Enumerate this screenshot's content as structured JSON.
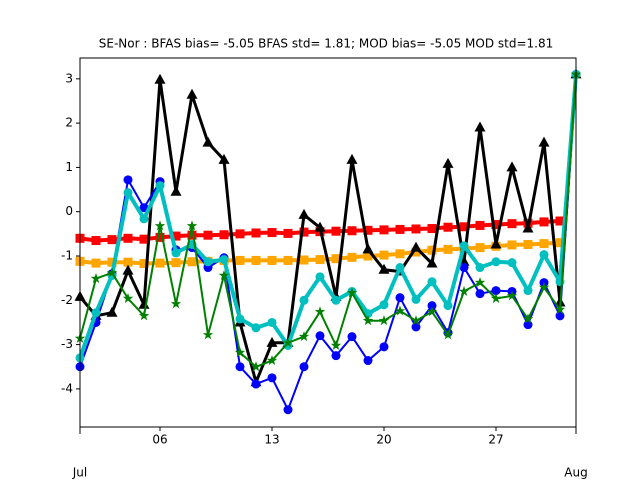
{
  "chart_data": {
    "type": "line",
    "title": "SE-Nor   : BFAS bias= -5.05 BFAS std= 1.81; MOD bias= -5.05 MOD std=1.81",
    "x": [
      1,
      2,
      3,
      4,
      5,
      6,
      7,
      8,
      9,
      10,
      11,
      12,
      13,
      14,
      15,
      16,
      17,
      18,
      19,
      20,
      21,
      22,
      23,
      24,
      25,
      26,
      27,
      28,
      29,
      30,
      31,
      32
    ],
    "xlim": [
      1,
      32
    ],
    "xticks": [
      {
        "value": 6,
        "label": "06"
      },
      {
        "value": 13,
        "label": "13"
      },
      {
        "value": 20,
        "label": "20"
      },
      {
        "value": 27,
        "label": "27"
      }
    ],
    "month_ticks": [
      {
        "value": 1,
        "label": "Jul"
      },
      {
        "value": 32,
        "label": "Aug"
      }
    ],
    "ylim": [
      -4.86,
      3.47
    ],
    "yticks": [
      -4,
      -3,
      -2,
      -1,
      0,
      1,
      2,
      3
    ],
    "grid": false,
    "series": [
      {
        "color": "#ff0000",
        "marker": "square",
        "width": 4,
        "values": [
          -0.6,
          -0.65,
          -0.63,
          -0.6,
          -0.62,
          -0.58,
          -0.55,
          -0.53,
          -0.53,
          -0.52,
          -0.5,
          -0.48,
          -0.47,
          -0.49,
          -0.46,
          -0.45,
          -0.44,
          -0.43,
          -0.42,
          -0.41,
          -0.4,
          -0.39,
          -0.38,
          -0.35,
          -0.34,
          -0.31,
          -0.29,
          -0.27,
          -0.26,
          -0.23,
          -0.21,
          null
        ]
      },
      {
        "color": "#ffa500",
        "marker": "square",
        "width": 4,
        "values": [
          -1.12,
          -1.16,
          -1.14,
          -1.14,
          -1.17,
          -1.16,
          -1.15,
          -1.13,
          -1.12,
          -1.1,
          -1.1,
          -1.1,
          -1.1,
          -1.1,
          -1.09,
          -1.08,
          -1.06,
          -1.03,
          -1.0,
          -0.98,
          -0.95,
          -0.91,
          -0.87,
          -0.85,
          -0.83,
          -0.81,
          -0.78,
          -0.75,
          -0.74,
          -0.72,
          -0.7,
          null
        ]
      },
      {
        "color": "#000000",
        "marker": "triangle",
        "width": 3,
        "values": [
          -1.92,
          -2.35,
          -2.28,
          -1.33,
          -2.1,
          2.98,
          0.45,
          2.64,
          1.56,
          1.17,
          -2.5,
          -3.85,
          -2.96,
          -2.96,
          -0.07,
          -0.36,
          -1.92,
          1.17,
          -0.85,
          -1.31,
          -1.35,
          -0.81,
          -1.17,
          1.08,
          -1.13,
          1.9,
          -0.74,
          1.0,
          -0.38,
          1.56,
          -2.05,
          3.1
        ]
      },
      {
        "color": "#0000ff",
        "marker": "circle",
        "width": 2,
        "values": [
          -3.5,
          -2.5,
          -1.4,
          0.72,
          0.09,
          0.68,
          -0.86,
          -0.81,
          -1.26,
          -1.04,
          -3.5,
          -3.89,
          -3.75,
          -4.47,
          -3.5,
          -2.8,
          -3.25,
          -2.82,
          -3.36,
          -3.05,
          -1.94,
          -2.6,
          -2.12,
          -2.73,
          -1.26,
          -1.85,
          -1.78,
          -1.8,
          -2.55,
          -1.6,
          -2.35,
          3.1
        ]
      },
      {
        "color": "#00bfbf",
        "marker": "circle",
        "width": 4,
        "values": [
          -3.3,
          -2.28,
          -1.44,
          0.43,
          -0.16,
          0.59,
          -0.93,
          -0.74,
          -1.13,
          -1.08,
          -2.42,
          -2.62,
          -2.5,
          -3.02,
          -2.0,
          -1.47,
          -2.0,
          -1.8,
          -2.3,
          -2.1,
          -1.26,
          -1.98,
          -1.58,
          -2.12,
          -0.77,
          -1.26,
          -1.13,
          -1.15,
          -1.78,
          -0.97,
          -1.58,
          3.1
        ]
      },
      {
        "color": "#008000",
        "marker": "star",
        "width": 2,
        "values": [
          -2.86,
          -1.51,
          -1.38,
          -1.96,
          -2.35,
          -0.32,
          -2.08,
          -0.32,
          -2.78,
          -1.44,
          -3.18,
          -3.5,
          -3.36,
          -2.96,
          -2.82,
          -2.26,
          -3.02,
          -1.83,
          -2.46,
          -2.46,
          -2.24,
          -2.46,
          -2.26,
          -2.78,
          -1.8,
          -1.6,
          -1.96,
          -1.9,
          -2.42,
          -1.71,
          -2.21,
          3.1
        ]
      }
    ]
  }
}
